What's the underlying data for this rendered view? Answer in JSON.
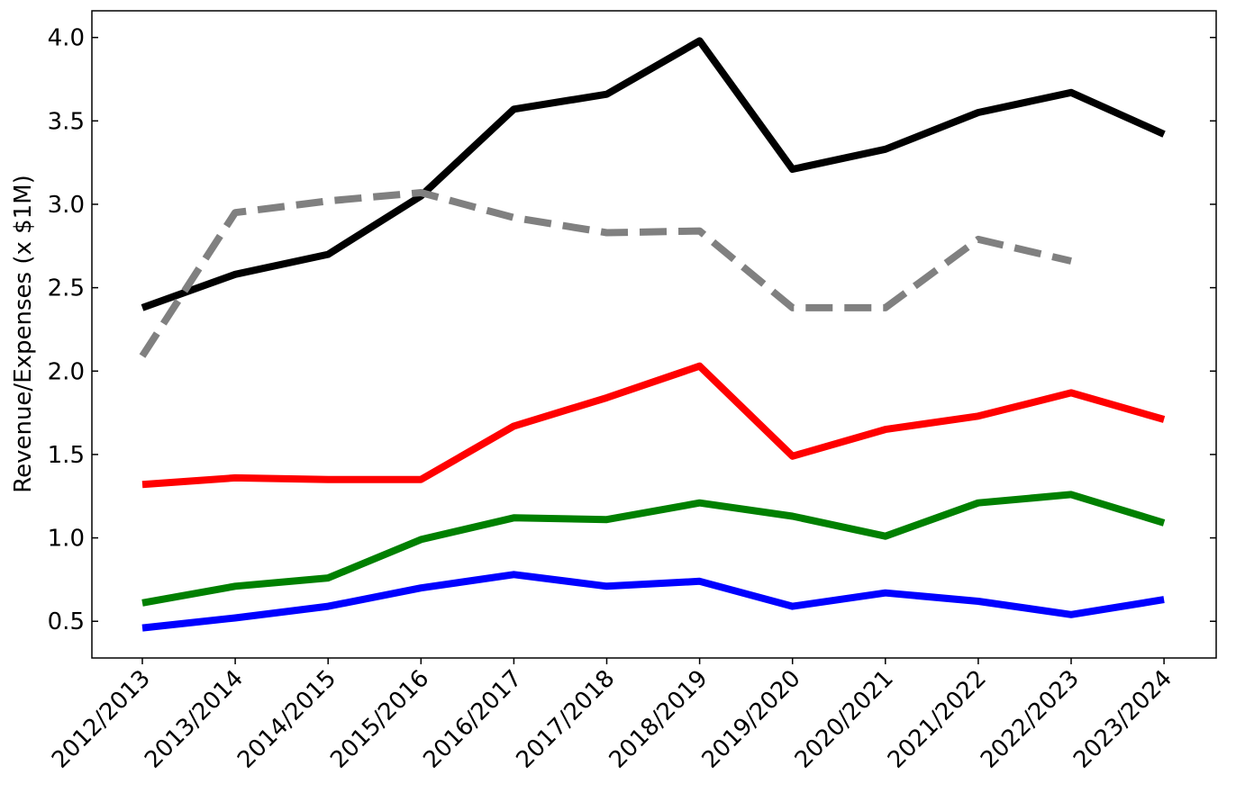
{
  "chart_data": {
    "type": "line",
    "title": "",
    "xlabel": "",
    "ylabel": "Revenue/Expenses (x $1M)",
    "categories": [
      "2012/2013",
      "2013/2014",
      "2014/2015",
      "2015/2016",
      "2016/2017",
      "2017/2018",
      "2018/2019",
      "2019/2020",
      "2020/2021",
      "2021/2022",
      "2022/2023",
      "2023/2024"
    ],
    "ylim": [
      0.28,
      4.16
    ],
    "yticks": [
      "0.5",
      "1.0",
      "1.5",
      "2.0",
      "2.5",
      "3.0",
      "3.5",
      "4.0"
    ],
    "grid": false,
    "legend": "none",
    "series": [
      {
        "color": "#000000",
        "style": "solid",
        "values": [
          2.38,
          2.58,
          2.7,
          3.05,
          3.57,
          3.66,
          3.98,
          3.21,
          3.33,
          3.55,
          3.67,
          3.42
        ]
      },
      {
        "color": "#808080",
        "style": "dashed",
        "values": [
          2.09,
          2.95,
          3.02,
          3.07,
          2.92,
          2.83,
          2.84,
          2.38,
          2.38,
          2.79,
          2.66,
          null
        ]
      },
      {
        "color": "#ff0000",
        "style": "solid",
        "values": [
          1.32,
          1.36,
          1.35,
          1.35,
          1.67,
          1.84,
          2.03,
          1.49,
          1.65,
          1.73,
          1.87,
          1.71
        ]
      },
      {
        "color": "#008000",
        "style": "solid",
        "values": [
          0.61,
          0.71,
          0.76,
          0.99,
          1.12,
          1.11,
          1.21,
          1.13,
          1.01,
          1.21,
          1.26,
          1.09
        ]
      },
      {
        "color": "#0000ff",
        "style": "solid",
        "values": [
          0.46,
          0.52,
          0.59,
          0.7,
          0.78,
          0.71,
          0.74,
          0.59,
          0.67,
          0.62,
          0.54,
          0.63
        ]
      }
    ]
  }
}
